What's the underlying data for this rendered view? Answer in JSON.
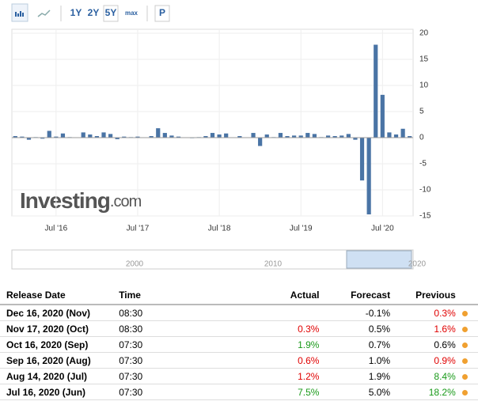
{
  "toolbar": {
    "ranges": [
      "1Y",
      "2Y",
      "5Y",
      "max"
    ],
    "selected": "5Y",
    "print": "P"
  },
  "chart_data": {
    "type": "bar",
    "color": "#4a74a5",
    "categories": [
      null,
      null,
      null,
      null,
      null,
      null,
      "Jul '16",
      null,
      null,
      null,
      null,
      null,
      null,
      null,
      null,
      null,
      null,
      null,
      "Jul '17",
      null,
      null,
      null,
      null,
      null,
      null,
      null,
      null,
      null,
      null,
      null,
      "Jul '18",
      null,
      null,
      null,
      null,
      null,
      null,
      null,
      null,
      null,
      null,
      null,
      "Jul '19",
      null,
      null,
      null,
      null,
      null,
      null,
      null,
      null,
      null,
      null,
      null,
      "Jul '20",
      null,
      null,
      null,
      null
    ],
    "values": [
      0.3,
      0.2,
      -0.4,
      0.1,
      -0.2,
      1.3,
      0.2,
      0.8,
      0.1,
      0.0,
      1.0,
      0.6,
      0.3,
      1.0,
      0.7,
      -0.3,
      0.2,
      0.1,
      0.2,
      0.0,
      0.3,
      1.8,
      0.9,
      0.4,
      0.2,
      0.0,
      -0.1,
      0.1,
      0.3,
      0.9,
      0.6,
      0.8,
      0.0,
      0.3,
      0.0,
      0.9,
      -1.6,
      0.6,
      0.1,
      0.9,
      0.3,
      0.4,
      0.4,
      0.9,
      0.7,
      0.1,
      0.4,
      0.3,
      0.4,
      0.7,
      -0.4,
      -8.2,
      -14.7,
      17.8,
      8.2,
      1.0,
      0.6,
      1.7,
      0.3
    ],
    "ylim": [
      -15,
      20
    ],
    "yticks": [
      -15,
      -10,
      -5,
      0,
      5,
      10,
      15,
      20
    ],
    "grid": true,
    "watermark": {
      "brand": "Investing",
      "domain": ".com"
    },
    "navigator_labels": [
      "2000",
      "2010",
      "2020"
    ]
  },
  "table": {
    "headers": [
      "Release Date",
      "Time",
      "Actual",
      "Forecast",
      "Previous"
    ],
    "rows": [
      {
        "date": "Dec 16, 2020 (Nov)",
        "time": "08:30",
        "forecast": "-0.1%",
        "previous": "0.3%",
        "previous_color": "#e00000"
      },
      {
        "date": "Nov 17, 2020 (Oct)",
        "time": "08:30",
        "actual": "0.3%",
        "actual_color": "#e00000",
        "forecast": "0.5%",
        "previous": "1.6%",
        "previous_color": "#e00000"
      },
      {
        "date": "Oct 16, 2020 (Sep)",
        "time": "07:30",
        "actual": "1.9%",
        "actual_color": "#1a9a1a",
        "forecast": "0.7%",
        "previous": "0.6%",
        "previous_color": "#000000"
      },
      {
        "date": "Sep 16, 2020 (Aug)",
        "time": "07:30",
        "actual": "0.6%",
        "actual_color": "#e00000",
        "forecast": "1.0%",
        "previous": "0.9%",
        "previous_color": "#e00000"
      },
      {
        "date": "Aug 14, 2020 (Jul)",
        "time": "07:30",
        "actual": "1.2%",
        "actual_color": "#e00000",
        "forecast": "1.9%",
        "previous": "8.4%",
        "previous_color": "#1a9a1a"
      },
      {
        "date": "Jul 16, 2020 (Jun)",
        "time": "07:30",
        "actual": "7.5%",
        "actual_color": "#1a9a1a",
        "forecast": "5.0%",
        "previous": "18.2%",
        "previous_color": "#1a9a1a"
      }
    ]
  }
}
